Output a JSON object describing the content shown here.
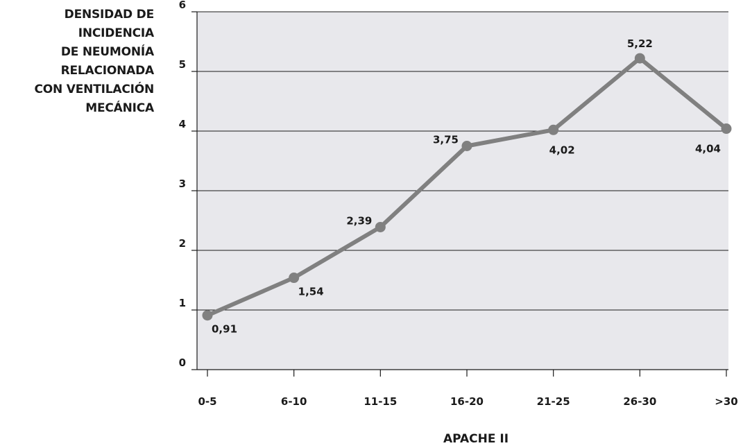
{
  "chart_data": {
    "type": "line",
    "title": "",
    "ylabel_lines": [
      "DENSIDAD DE",
      "INCIDENCIA",
      "DE NEUMONÍA",
      "RELACIONADA",
      "CON VENTILACIÓN",
      "MECÁNICA"
    ],
    "xlabel": "APACHE II",
    "categories": [
      "0-5",
      "6-10",
      "11-15",
      "16-20",
      "21-25",
      "26-30",
      ">30"
    ],
    "series": [
      {
        "values": [
          0.91,
          1.54,
          2.39,
          3.75,
          4.02,
          5.22,
          4.04
        ],
        "data_labels": [
          "0,91",
          "1,54",
          "2,39",
          "3,75",
          "4,02",
          "5,22",
          "4,04"
        ],
        "color": "#808080"
      }
    ],
    "ylim": [
      0,
      6
    ],
    "yticks": [
      "0",
      "1",
      "2",
      "3",
      "4",
      "5",
      "6"
    ],
    "grid": true,
    "plot_background": "#e8e8ec",
    "legend": "none"
  }
}
